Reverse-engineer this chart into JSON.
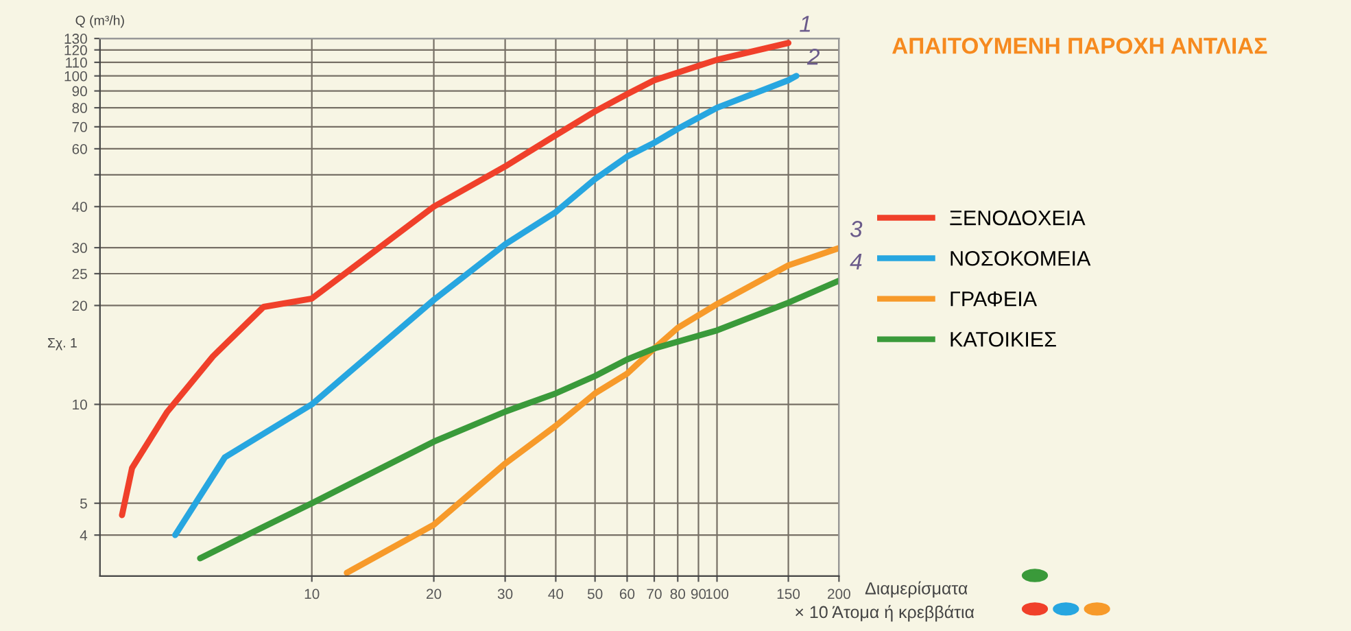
{
  "chart_data": {
    "type": "line",
    "title": "ΑΠΑΙΤΟΥΜΕΝΗ ΠΑΡΟΧΗ ΑΝΤΛΙΑΣ",
    "ylabel": "Q (m³/h)",
    "xlabel": "Διαμερίσματα",
    "annotations": [
      "Σχ. 1",
      "× 10 Άτομα ή κρεββάτια",
      {
        "text": "1",
        "x": 150,
        "y": 126
      },
      {
        "text": "2",
        "x": 157,
        "y": 100
      },
      {
        "text": "3",
        "x": 200,
        "y": 29.9
      },
      {
        "text": "4",
        "x": 200,
        "y": 23.8
      }
    ],
    "log": "xy",
    "grid": true,
    "legend": "right",
    "xlim": [
      3,
      200
    ],
    "ylim": [
      3,
      130
    ],
    "xticks": [
      10,
      20,
      30,
      40,
      50,
      60,
      70,
      80,
      90,
      100,
      150,
      200
    ],
    "yticks": [
      4,
      5,
      10,
      20,
      25,
      30,
      40,
      {
        "value": 50,
        "label": null
      },
      60,
      70,
      80,
      90,
      100,
      110,
      120,
      130
    ],
    "series": [
      {
        "name": "ΞΕΝΟΔΟΧΕΙΑ",
        "color": "#f0402a",
        "x": [
          3.4,
          3.6,
          4.4,
          5.7,
          7.6,
          10,
          20,
          30,
          40,
          50,
          60,
          70,
          100,
          150
        ],
        "values": [
          4.6,
          6.4,
          9.5,
          14,
          19.8,
          21,
          40,
          53,
          66,
          78,
          88,
          97,
          112,
          126
        ]
      },
      {
        "name": "ΝΟΣΟΚΟΜΕΙΑ",
        "color": "#27a6e0",
        "x": [
          4.6,
          6.1,
          10,
          20,
          30,
          40,
          50,
          60,
          70,
          80,
          100,
          150,
          157
        ],
        "values": [
          4.0,
          6.9,
          10,
          20.8,
          30.7,
          38.5,
          48.5,
          56.8,
          62.6,
          69,
          80,
          97,
          100
        ]
      },
      {
        "name": "ΓΡΑΦΕΙΑ",
        "color": "#f79a2a",
        "x": [
          12.2,
          20,
          30,
          40,
          50,
          60,
          70,
          80,
          100,
          150,
          200
        ],
        "values": [
          3.07,
          4.3,
          6.6,
          8.6,
          10.8,
          12.4,
          14.8,
          17.1,
          20.2,
          26.5,
          29.9
        ]
      },
      {
        "name": "ΚΑΤΟΙΚΙΕΣ",
        "color": "#3a9a3a",
        "x": [
          5.3,
          7.2,
          10,
          20,
          30,
          40,
          50,
          60,
          70,
          100,
          150,
          200
        ],
        "values": [
          3.4,
          4.1,
          5.0,
          7.7,
          9.5,
          10.8,
          12.2,
          13.7,
          14.8,
          16.8,
          20.4,
          23.8
        ]
      }
    ]
  }
}
